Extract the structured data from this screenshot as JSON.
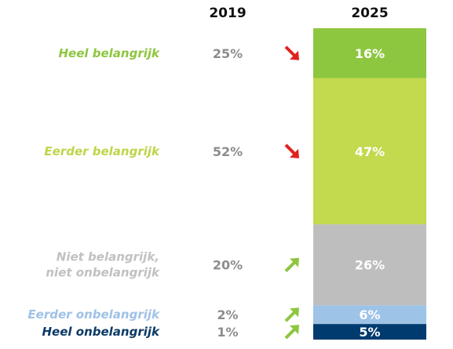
{
  "chart_data": {
    "type": "bar",
    "title": "",
    "column_headers": [
      "2019",
      "2025"
    ],
    "categories": [
      {
        "label_lines": [
          "Heel belangrijk"
        ],
        "label_color": "#8dc63f",
        "value_2019": 25,
        "value_2025": 16,
        "display_2019": "25%",
        "display_2025": "16%",
        "trend": "down",
        "bar_color": "#8dc63f"
      },
      {
        "label_lines": [
          "Eerder belangrijk"
        ],
        "label_color": "#bcd64a",
        "value_2019": 52,
        "value_2025": 47,
        "display_2019": "52%",
        "display_2025": "47%",
        "trend": "down",
        "bar_color": "#c3d94e"
      },
      {
        "label_lines": [
          "Niet belangrijk,",
          "niet onbelangrijk"
        ],
        "label_color": "#c1c1c1",
        "value_2019": 20,
        "value_2025": 26,
        "display_2019": "20%",
        "display_2025": "26%",
        "trend": "up",
        "bar_color": "#bfbebe"
      },
      {
        "label_lines": [
          "Eerder onbelangrijk"
        ],
        "label_color": "#9fc2e6",
        "value_2019": 2,
        "value_2025": 6,
        "display_2019": "2%",
        "display_2025": "6%",
        "trend": "up",
        "bar_color": "#9dc3e6"
      },
      {
        "label_lines": [
          "Heel onbelangrijk"
        ],
        "label_color": "#0b3a66",
        "value_2019": 1,
        "value_2025": 5,
        "display_2019": "1%",
        "display_2025": "5%",
        "trend": "up",
        "bar_color": "#003b6f"
      }
    ],
    "trend_colors": {
      "down": "#e0221f",
      "up": "#8dc63f"
    }
  }
}
